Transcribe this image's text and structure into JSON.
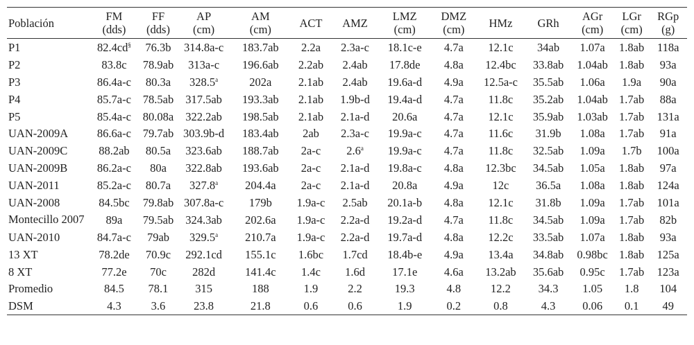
{
  "table": {
    "headers": [
      [
        "Población"
      ],
      [
        "FM",
        "(dds)"
      ],
      [
        "FF",
        "(dds)"
      ],
      [
        "AP",
        "(cm)"
      ],
      [
        "AM",
        "(cm)"
      ],
      [
        "ACT"
      ],
      [
        "AMZ"
      ],
      [
        "LMZ",
        "(cm)"
      ],
      [
        "DMZ",
        "(cm)"
      ],
      [
        "HMz"
      ],
      [
        "GRh"
      ],
      [
        "AGr",
        "(cm)"
      ],
      [
        "LGr",
        "(cm)"
      ],
      [
        "RGp",
        "(g)"
      ]
    ],
    "rows": [
      [
        "P1",
        [
          "82.4cd",
          "§"
        ],
        "76.3b",
        "314.8a-c",
        "183.7ab",
        "2.2a",
        "2.3a-c",
        "18.1c-e",
        "4.7a",
        "12.1c",
        "34ab",
        "1.07a",
        "1.8ab",
        "118a"
      ],
      [
        "P2",
        "83.8c",
        "78.9ab",
        "313a-c",
        "196.6ab",
        "2.2ab",
        "2.4ab",
        "17.8de",
        "4.8a",
        "12.4bc",
        "33.8ab",
        "1.04ab",
        "1.8ab",
        "93a"
      ],
      [
        "P3",
        "86.4a-c",
        "80.3a",
        [
          "328.5",
          "a"
        ],
        "202a",
        "2.1ab",
        "2.4ab",
        "19.6a-d",
        "4.9a",
        "12.5a-c",
        "35.5ab",
        "1.06a",
        "1.9a",
        "90a"
      ],
      [
        "P4",
        "85.7a-c",
        "78.5ab",
        "317.5ab",
        "193.3ab",
        "2.1ab",
        "1.9b-d",
        "19.4a-d",
        "4.7a",
        "11.8c",
        "35.2ab",
        "1.04ab",
        "1.7ab",
        "88a"
      ],
      [
        "P5",
        "85.4a-c",
        "80.08a",
        "322.2ab",
        "198.5ab",
        "2.1ab",
        "2.1a-d",
        "20.6a",
        "4.7a",
        "12.1c",
        "35.9ab",
        "1.03ab",
        "1.7ab",
        "131a"
      ],
      [
        "UAN-2009A",
        "86.6a-c",
        "79.7ab",
        "303.9b-d",
        "183.4ab",
        "2ab",
        "2.3a-c",
        "19.9a-c",
        "4.7a",
        "11.6c",
        "31.9b",
        "1.08a",
        "1.7ab",
        "91a"
      ],
      [
        "UAN-2009C",
        "88.2ab",
        "80.5a",
        "323.6ab",
        "188.7ab",
        "2a-c",
        [
          "2.6",
          "a"
        ],
        "19.9a-c",
        "4.7a",
        "11.8c",
        "32.5ab",
        "1.09a",
        "1.7b",
        "100a"
      ],
      [
        "UAN-2009B",
        "86.2a-c",
        "80a",
        "322.8ab",
        "193.6ab",
        "2a-c",
        "2.1a-d",
        "19.8a-c",
        "4.8a",
        "12.3bc",
        "34.5ab",
        "1.05a",
        "1.8ab",
        "97a"
      ],
      [
        "UAN-2011",
        "85.2a-c",
        "80.7a",
        [
          "327.8",
          "a"
        ],
        "204.4a",
        "2a-c",
        "2.1a-d",
        "20.8a",
        "4.9a",
        "12c",
        "36.5a",
        "1.08a",
        "1.8ab",
        "124a"
      ],
      [
        "UAN-2008",
        "84.5bc",
        "79.8ab",
        "307.8a-c",
        "179b",
        "1.9a-c",
        "2.5ab",
        "20.1a-b",
        "4.8a",
        "12.1c",
        "31.8b",
        "1.09a",
        "1.7ab",
        "101a"
      ],
      [
        "Montecillo 2007",
        "89a",
        "79.5ab",
        "324.3ab",
        "202.6a",
        "1.9a-c",
        "2.2a-d",
        "19.2a-d",
        "4.7a",
        "11.8c",
        "34.5ab",
        "1.09a",
        "1.7ab",
        "82b"
      ],
      [
        "UAN-2010",
        "84.7a-c",
        "79ab",
        [
          "329.5",
          "a"
        ],
        "210.7a",
        "1.9a-c",
        "2.2a-d",
        "19.7a-d",
        "4.8a",
        "12.2c",
        "33.5ab",
        "1.07a",
        "1.8ab",
        "93a"
      ],
      [
        "13 XT",
        "78.2de",
        "70.9c",
        "292.1cd",
        "155.1c",
        "1.6bc",
        "1.7cd",
        "18.4b-e",
        "4.9a",
        "13.4a",
        "34.8ab",
        "0.98bc",
        "1.8ab",
        "125a"
      ],
      [
        "8 XT",
        "77.2e",
        "70c",
        "282d",
        "141.4c",
        "1.4c",
        "1.6d",
        "17.1e",
        "4.6a",
        "13.2ab",
        "35.6ab",
        "0.95c",
        "1.7ab",
        "123a"
      ],
      [
        "Promedio",
        "84.5",
        "78.1",
        "315",
        "188",
        "1.9",
        "2.2",
        "19.3",
        "4.8",
        "12.2",
        "34.3",
        "1.05",
        "1.8",
        "104"
      ],
      [
        "DSM",
        "4.3",
        "3.6",
        "23.8",
        "21.8",
        "0.6",
        "0.6",
        "1.9",
        "0.2",
        "0.8",
        "4.3",
        "0.06",
        "0.1",
        "49"
      ]
    ]
  }
}
